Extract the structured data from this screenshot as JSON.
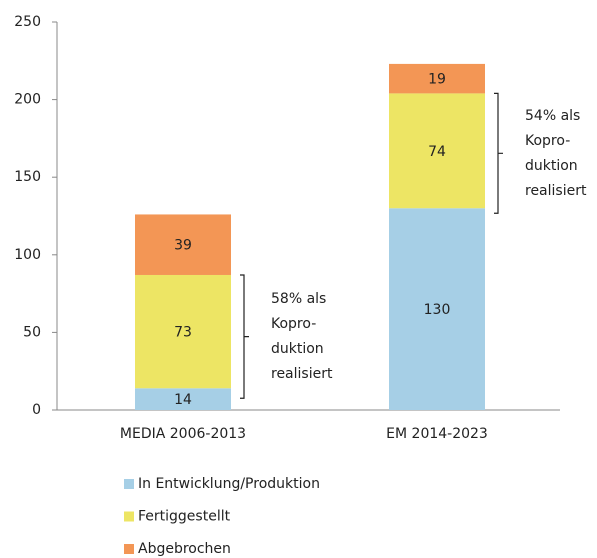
{
  "chart_data": {
    "type": "stacked_bar",
    "categories": [
      "MEDIA 2006-2013",
      "EM 2014-2023"
    ],
    "series": [
      {
        "name": "In Entwicklung/Produktion",
        "color": "#a6cfe6",
        "values": [
          14,
          130
        ]
      },
      {
        "name": "Fertiggestellt",
        "color": "#ede564",
        "values": [
          73,
          74
        ]
      },
      {
        "name": "Abgebrochen",
        "color": "#f39655",
        "values": [
          39,
          19
        ]
      }
    ],
    "ylim": [
      0,
      250
    ],
    "yticks": [
      0,
      50,
      100,
      150,
      200,
      250
    ],
    "annotations": [
      {
        "lines": [
          "58% als",
          "Kopro-",
          "duktion",
          "realisiert"
        ]
      },
      {
        "lines": [
          "54% als",
          "Kopro-",
          "duktion",
          "realisiert"
        ]
      }
    ]
  }
}
